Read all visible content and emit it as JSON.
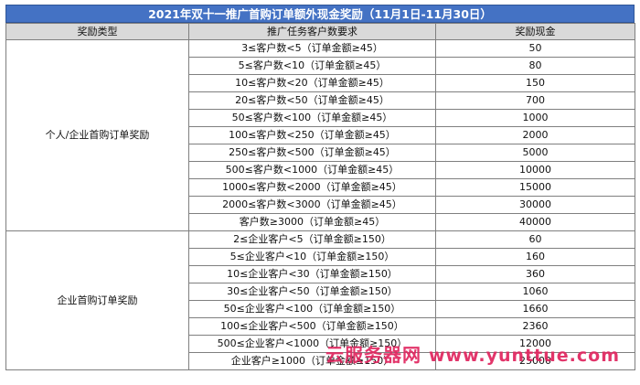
{
  "title": "2021年双十一推广首购订单额外现金奖励（11月1日-11月30日）",
  "headers": [
    "奖励类型",
    "推广任务客户数要求",
    "奖励现金"
  ],
  "groups": [
    {
      "type": "个人/企业首购订单奖励",
      "rows": [
        {
          "req": "3≤客户数<5（订单金额≥45）",
          "reward": "50"
        },
        {
          "req": "5≤客户数<10（订单金额≥45）",
          "reward": "80"
        },
        {
          "req": "10≤客户数<20（订单金额≥45）",
          "reward": "150"
        },
        {
          "req": "20≤客户数<50（订单金额≥45）",
          "reward": "700"
        },
        {
          "req": "50≤客户数<100（订单金额≥45）",
          "reward": "1000"
        },
        {
          "req": "100≤客户数<250（订单金额≥45）",
          "reward": "2000"
        },
        {
          "req": "250≤客户数<500（订单金额≥45）",
          "reward": "5000"
        },
        {
          "req": "500≤客户数<1000（订单金额≥45）",
          "reward": "10000"
        },
        {
          "req": "1000≤客户数<2000（订单金额≥45）",
          "reward": "15000"
        },
        {
          "req": "2000≤客户数<3000（订单金额≥45）",
          "reward": "30000"
        },
        {
          "req": "客户数≥3000（订单金额≥45）",
          "reward": "40000"
        }
      ]
    },
    {
      "type": "企业首购订单奖励",
      "rows": [
        {
          "req": "2≤企业客户<5（订单金额≥150）",
          "reward": "60"
        },
        {
          "req": "5≤企业客户<10（订单金额≥150）",
          "reward": "160"
        },
        {
          "req": "10≤企业客户<30（订单金额≥150）",
          "reward": "360"
        },
        {
          "req": "30≤企业客户<50（订单金额≥150）",
          "reward": "1060"
        },
        {
          "req": "50≤企业客户<100（订单金额≥150）",
          "reward": "1660"
        },
        {
          "req": "100≤企业客户<500（订单金额≥150）",
          "reward": "2360"
        },
        {
          "req": "500≤企业客户<1000（订单金额≥150）",
          "reward": "12000"
        },
        {
          "req": "企业客户≥1000（订单金额≥150）",
          "reward": "25000"
        }
      ]
    }
  ],
  "watermark": {
    "cn": "云服务器网",
    "en": "www.yunttue.com",
    "color": "#e0245e"
  }
}
